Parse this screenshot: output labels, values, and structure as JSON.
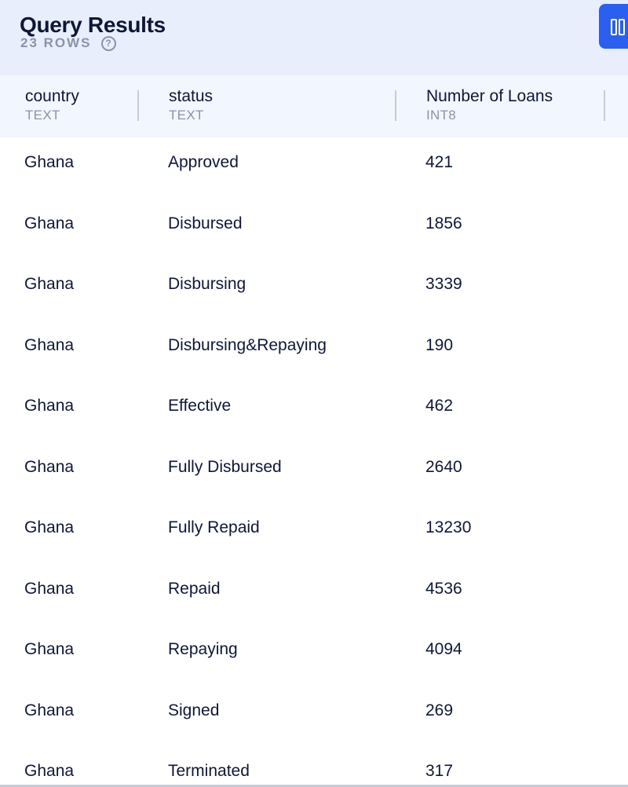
{
  "header": {
    "title": "Query Results",
    "row_count": "23 ROWS",
    "help_icon": "?"
  },
  "columns": [
    {
      "name": "country",
      "type": "TEXT"
    },
    {
      "name": "status",
      "type": "TEXT"
    },
    {
      "name": "Number of Loans",
      "type": "INT8"
    }
  ],
  "rows": [
    {
      "country": "Ghana",
      "status": "Approved",
      "loans": "421"
    },
    {
      "country": "Ghana",
      "status": "Disbursed",
      "loans": "1856"
    },
    {
      "country": "Ghana",
      "status": "Disbursing",
      "loans": "3339"
    },
    {
      "country": "Ghana",
      "status": "Disbursing&Repaying",
      "loans": "190"
    },
    {
      "country": "Ghana",
      "status": "Effective",
      "loans": "462"
    },
    {
      "country": "Ghana",
      "status": "Fully Disbursed",
      "loans": "2640"
    },
    {
      "country": "Ghana",
      "status": "Fully Repaid",
      "loans": "13230"
    },
    {
      "country": "Ghana",
      "status": "Repaid",
      "loans": "4536"
    },
    {
      "country": "Ghana",
      "status": "Repaying",
      "loans": "4094"
    },
    {
      "country": "Ghana",
      "status": "Signed",
      "loans": "269"
    },
    {
      "country": "Ghana",
      "status": "Terminated",
      "loans": "317"
    }
  ],
  "colors": {
    "accent": "#2b5ff0",
    "header_bg": "#e8eefb",
    "column_header_bg": "#f2f6fe"
  },
  "icons": {
    "help": "question-circle-icon",
    "view_toggle": "columns-icon"
  }
}
